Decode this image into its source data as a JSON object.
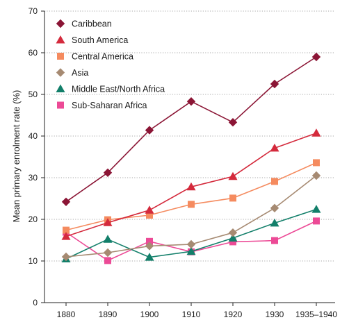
{
  "chart_data": {
    "type": "line",
    "ylabel": "Mean primary enrolment rate (%)",
    "xlabel": "",
    "ylim": [
      0,
      70
    ],
    "yticks": [
      0,
      10,
      20,
      30,
      40,
      50,
      60,
      70
    ],
    "categories": [
      "1880",
      "1890",
      "1900",
      "1910",
      "1920",
      "1930",
      "1935–1940"
    ],
    "grid": "horizontal dotted",
    "legend_position": "top-left",
    "series": [
      {
        "name": "Caribbean",
        "color": "#8b1535",
        "marker": "diamond",
        "values": [
          24.2,
          31.2,
          41.4,
          48.3,
          43.3,
          52.5,
          59.0
        ]
      },
      {
        "name": "South America",
        "color": "#d42a3c",
        "marker": "triangle",
        "values": [
          15.9,
          19.2,
          22.2,
          27.8,
          30.3,
          37.1,
          40.7
        ]
      },
      {
        "name": "Central America",
        "color": "#f58b5f",
        "marker": "square",
        "values": [
          17.4,
          19.9,
          21.0,
          23.6,
          25.1,
          29.1,
          33.6
        ]
      },
      {
        "name": "Asia",
        "color": "#a68a72",
        "marker": "diamond",
        "values": [
          11.0,
          12.0,
          13.6,
          14.0,
          16.8,
          22.7,
          30.5
        ]
      },
      {
        "name": "Middle East/North Africa",
        "color": "#127f6a",
        "marker": "triangle",
        "values": [
          10.5,
          15.2,
          10.9,
          12.3,
          15.5,
          19.1,
          22.4
        ]
      },
      {
        "name": "Sub-Saharan Africa",
        "color": "#ec4a96",
        "marker": "square",
        "values": [
          16.9,
          10.1,
          14.7,
          12.2,
          14.6,
          14.9,
          19.6
        ]
      }
    ]
  }
}
